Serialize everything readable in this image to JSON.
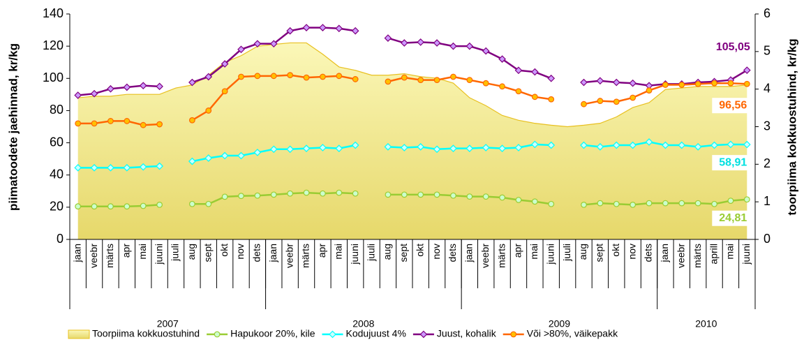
{
  "chart_data": {
    "type": "line",
    "y_label": "piimatoodete jaehinnad, kr/kg",
    "y2_label": "toorpiima kokkuostuhind, kr/kg",
    "categories": [
      "jaan",
      "veebr",
      "märts",
      "apr",
      "mai",
      "juuni",
      "juuli",
      "aug",
      "sept",
      "okt",
      "nov",
      "dets",
      "jaan",
      "veebr",
      "märts",
      "apr",
      "mai",
      "juuni",
      "juuli",
      "aug",
      "sept",
      "okt",
      "nov",
      "dets",
      "jaan",
      "veebr",
      "märts",
      "apr",
      "mai",
      "juuni",
      "juuli",
      "aug",
      "sept",
      "okt",
      "nov",
      "dets",
      "jaan",
      "veebr",
      "märts",
      "aprill",
      "mai",
      "juuni"
    ],
    "years": [
      "2007",
      "2008",
      "2009",
      "2010"
    ],
    "ylim": [
      0,
      140
    ],
    "yticks": [
      0,
      20,
      40,
      60,
      80,
      100,
      120,
      140
    ],
    "y2lim": [
      0,
      6
    ],
    "y2ticks": [
      0,
      1,
      2,
      3,
      4,
      5,
      6
    ],
    "grid": false,
    "series": [
      {
        "name": "Toorpiima kokkuostuhind",
        "type": "area",
        "axis": "y2",
        "color": "#e8c020",
        "fill": "#f2eb8c",
        "values": [
          3.77,
          3.81,
          3.81,
          3.86,
          3.86,
          3.86,
          4.03,
          4.11,
          4.37,
          4.71,
          4.89,
          5.14,
          5.19,
          5.23,
          5.23,
          4.93,
          4.59,
          4.5,
          4.37,
          4.37,
          4.41,
          4.33,
          4.29,
          4.16,
          3.77,
          3.56,
          3.3,
          3.17,
          3.09,
          3.04,
          3.0,
          3.04,
          3.09,
          3.26,
          3.51,
          3.64,
          3.99,
          4.03,
          4.07,
          4.07,
          4.07,
          4.11
        ]
      },
      {
        "name": "Hapukoor 20%, kile",
        "color": "#99cc33",
        "marker": "circle",
        "marker_fill": "#ccffcc",
        "values": [
          20.5,
          20.5,
          20.5,
          20.5,
          20.8,
          21.5,
          null,
          22,
          22,
          26.5,
          27,
          27.2,
          27.8,
          28.5,
          29,
          28.5,
          29,
          28.5,
          null,
          27.8,
          27.8,
          27.8,
          27.8,
          27.2,
          26.6,
          26.6,
          26,
          24.5,
          23.5,
          22,
          null,
          21.5,
          22.5,
          22,
          21.5,
          22.5,
          22.5,
          22.5,
          22.5,
          22,
          24,
          24.81
        ],
        "value_labels": [
          null,
          null,
          null,
          null,
          null,
          null,
          null,
          null,
          null,
          null,
          null,
          null,
          null,
          null,
          null,
          null,
          null,
          null,
          null,
          null,
          null,
          null,
          null,
          null,
          null,
          null,
          null,
          null,
          null,
          null,
          null,
          null,
          null,
          null,
          null,
          null,
          null,
          null,
          null,
          null,
          null,
          "24,81"
        ],
        "label_color": "#99cc33"
      },
      {
        "name": "Kodujuust 4%",
        "color": "#00ffff",
        "marker": "diamond",
        "marker_fill": "#ccffff",
        "values": [
          44.5,
          44.5,
          44.5,
          44.5,
          45,
          45.5,
          null,
          48.5,
          50.5,
          52,
          52,
          54,
          56,
          56,
          56.5,
          57,
          56.5,
          58.5,
          null,
          57.5,
          57,
          57.5,
          56,
          56.5,
          56.5,
          57,
          56.5,
          57,
          59,
          58.5,
          null,
          58.5,
          57.5,
          58.5,
          58.5,
          60.5,
          58.5,
          58.5,
          57.5,
          58.5,
          59,
          58.91
        ],
        "value_labels": [
          null,
          null,
          null,
          null,
          null,
          null,
          null,
          null,
          null,
          null,
          null,
          null,
          null,
          null,
          null,
          null,
          null,
          null,
          null,
          null,
          null,
          null,
          null,
          null,
          null,
          null,
          null,
          null,
          null,
          null,
          null,
          null,
          null,
          null,
          null,
          null,
          null,
          null,
          null,
          null,
          null,
          "58,91"
        ],
        "label_color": "#00e0e0"
      },
      {
        "name": "Juust, kohalik",
        "color": "#800080",
        "marker": "diamond",
        "marker_fill": "#cc99ff",
        "values": [
          89.5,
          90.5,
          93.5,
          94.5,
          95.5,
          95,
          null,
          97.5,
          101,
          109,
          118,
          121.5,
          121.5,
          129.5,
          131.5,
          131.5,
          131,
          129.5,
          null,
          125,
          122,
          122.5,
          122,
          120,
          120,
          117,
          112,
          105,
          104,
          100,
          null,
          97.5,
          98.5,
          97.5,
          97,
          95.5,
          96.5,
          96.5,
          97.5,
          98,
          99,
          105.05
        ],
        "value_labels": [
          null,
          null,
          null,
          null,
          null,
          null,
          null,
          null,
          null,
          null,
          null,
          null,
          null,
          null,
          null,
          null,
          null,
          null,
          null,
          null,
          null,
          null,
          null,
          null,
          null,
          null,
          null,
          null,
          null,
          null,
          null,
          null,
          null,
          null,
          null,
          null,
          null,
          null,
          null,
          null,
          null,
          "105,05"
        ],
        "label_color": "#800080"
      },
      {
        "name": "Või >80%, väikepakk",
        "color": "#ff6600",
        "marker": "circle",
        "marker_fill": "#ffc000",
        "values": [
          72,
          72,
          73.5,
          73.5,
          71,
          71.5,
          null,
          74,
          80,
          92,
          101,
          101.5,
          101.5,
          102,
          100.5,
          101,
          101.5,
          99.5,
          null,
          98,
          100.5,
          99,
          99,
          101,
          99,
          97,
          95,
          92,
          88.5,
          87,
          null,
          84,
          86,
          85.5,
          88,
          92.5,
          96,
          96,
          96.5,
          97,
          97,
          96.56
        ],
        "value_labels": [
          null,
          null,
          null,
          null,
          null,
          null,
          null,
          null,
          null,
          null,
          null,
          null,
          null,
          null,
          null,
          null,
          null,
          null,
          null,
          null,
          null,
          null,
          null,
          null,
          null,
          null,
          null,
          null,
          null,
          null,
          null,
          null,
          null,
          null,
          null,
          null,
          null,
          null,
          null,
          null,
          null,
          "96,56"
        ],
        "label_color": "#ff6600"
      }
    ]
  }
}
